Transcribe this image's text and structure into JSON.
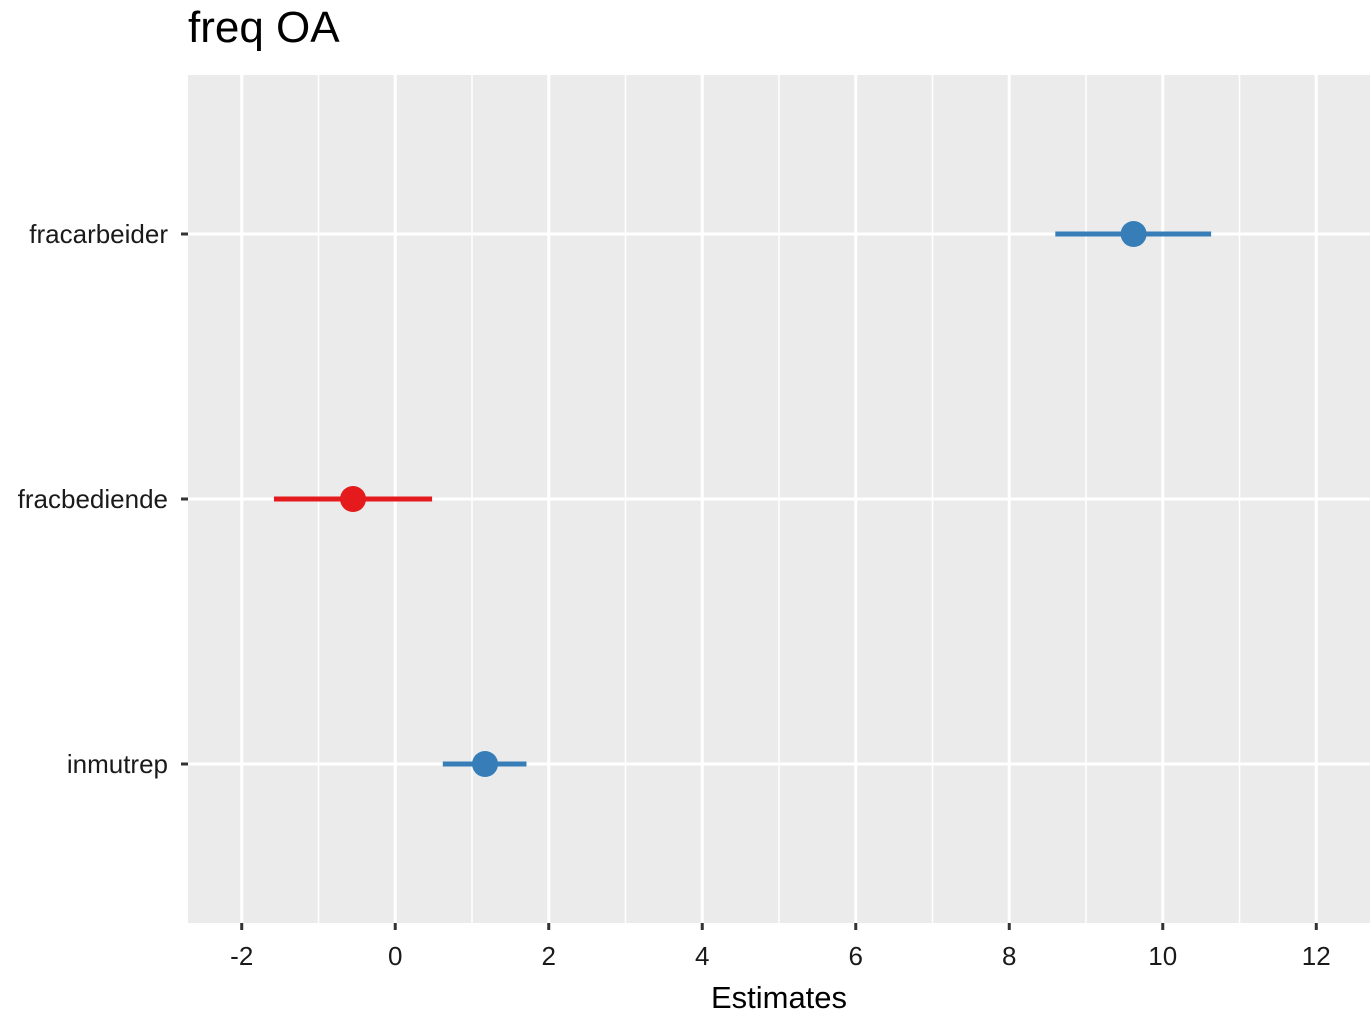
{
  "chart_data": {
    "type": "scatter",
    "subtype": "coefficient-plot",
    "title": "freq OA",
    "xlabel": "Estimates",
    "ylabel": "",
    "xlim": [
      -2.7,
      12.7
    ],
    "xticks": [
      -2,
      0,
      2,
      4,
      6,
      8,
      10,
      12
    ],
    "xtick_labels": [
      "-2",
      "0",
      "2",
      "4",
      "6",
      "8",
      "10",
      "12"
    ],
    "grid": true,
    "legend": "none",
    "colors": {
      "positive": "#377eb8",
      "negative": "#e41a1c",
      "panel": "#ebebeb",
      "grid": "#ffffff"
    },
    "terms": [
      {
        "label": "fracarbeider",
        "estimate": 9.62,
        "ci_low": 8.6,
        "ci_high": 10.63,
        "sign": "positive"
      },
      {
        "label": "fracbediende",
        "estimate": -0.55,
        "ci_low": -1.58,
        "ci_high": 0.48,
        "sign": "negative"
      },
      {
        "label": "inmutrep",
        "estimate": 1.17,
        "ci_low": 0.62,
        "ci_high": 1.71,
        "sign": "positive"
      }
    ]
  }
}
